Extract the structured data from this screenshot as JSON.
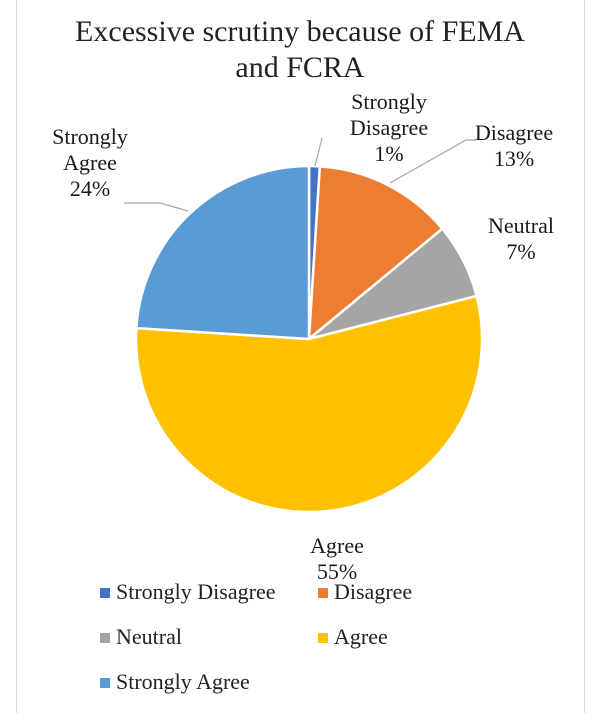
{
  "chart_data": {
    "type": "pie",
    "title": "Excessive scrutiny because of FEMA and FCRA",
    "categories": [
      "Strongly Disagree",
      "Disagree",
      "Neutral",
      "Agree",
      "Strongly Agree"
    ],
    "values": [
      1,
      13,
      7,
      55,
      24
    ],
    "data_labels": [
      {
        "category": "Strongly",
        "category_line2": "Disagree",
        "percent": "1%"
      },
      {
        "category": "Disagree",
        "percent": "13%"
      },
      {
        "category": "Neutral",
        "percent": "7%"
      },
      {
        "category": "Agree",
        "percent": "55%"
      },
      {
        "category": "Strongly",
        "category_line2": "Agree",
        "percent": "24%"
      }
    ],
    "colors": [
      "#4472C4",
      "#ED7D31",
      "#A5A5A5",
      "#FFC000",
      "#5B9BD5"
    ],
    "legend_position": "bottom"
  }
}
